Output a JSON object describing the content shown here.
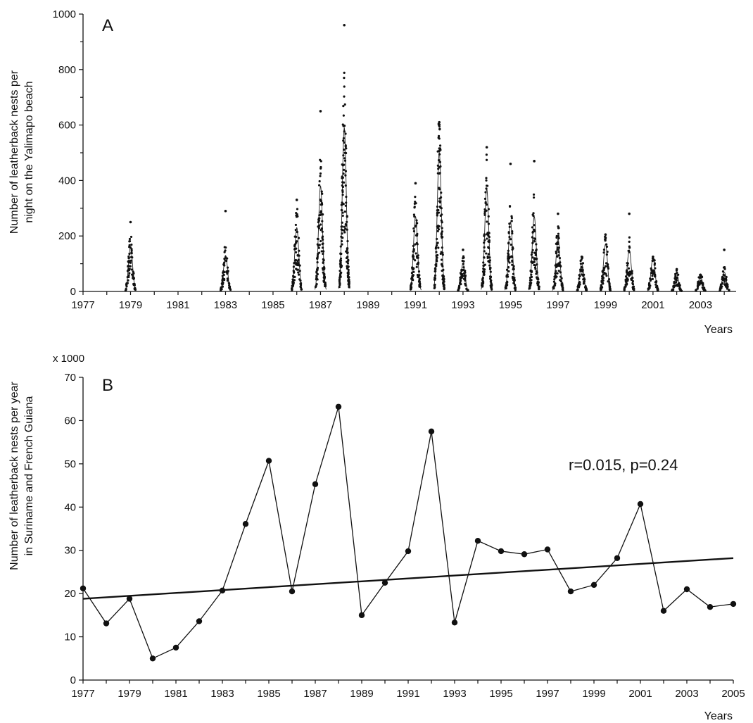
{
  "chart_data": [
    {
      "type": "scatter",
      "panel_label": "A",
      "ylabel_lines": [
        "Number of leatherback nests per",
        "night on the Yalimapo beach"
      ],
      "xlabel": "Years",
      "xlim": [
        1977,
        2004.5
      ],
      "ylim": [
        0,
        1000
      ],
      "y_ticks": [
        0,
        200,
        400,
        600,
        800,
        1000
      ],
      "y_minor_step": 100,
      "x_ticks": [
        1977,
        1979,
        1981,
        1983,
        1985,
        1987,
        1989,
        1991,
        1993,
        1995,
        1997,
        1999,
        2001,
        2003
      ],
      "x_tick_labels": [
        "1977",
        "1979",
        "1981",
        "1983",
        "1985",
        "1987",
        "1989",
        "1991",
        "1993",
        "1995",
        "1997",
        "1999",
        "2001",
        "2003"
      ],
      "seasons": [
        {
          "year": 1979,
          "peak": 160,
          "max_obs": 250
        },
        {
          "year": 1983,
          "peak": 130,
          "max_obs": 290
        },
        {
          "year": 1986,
          "peak": 230,
          "max_obs": 330
        },
        {
          "year": 1987,
          "peak": 380,
          "max_obs": 650
        },
        {
          "year": 1988,
          "peak": 590,
          "max_obs": 960
        },
        {
          "year": 1991,
          "peak": 270,
          "max_obs": 390
        },
        {
          "year": 1992,
          "peak": 500,
          "max_obs": 610
        },
        {
          "year": 1993,
          "peak": 100,
          "max_obs": 150
        },
        {
          "year": 1994,
          "peak": 370,
          "max_obs": 520
        },
        {
          "year": 1995,
          "peak": 250,
          "max_obs": 460
        },
        {
          "year": 1996,
          "peak": 270,
          "max_obs": 470
        },
        {
          "year": 1997,
          "peak": 190,
          "max_obs": 280
        },
        {
          "year": 1998,
          "peak": 100,
          "max_obs": 125
        },
        {
          "year": 1999,
          "peak": 170,
          "max_obs": 205
        },
        {
          "year": 2000,
          "peak": 150,
          "max_obs": 280
        },
        {
          "year": 2001,
          "peak": 120,
          "max_obs": 125
        },
        {
          "year": 2002,
          "peak": 60,
          "max_obs": 80
        },
        {
          "year": 2003,
          "peak": 55,
          "max_obs": 60
        },
        {
          "year": 2004,
          "peak": 70,
          "max_obs": 150
        }
      ],
      "grid": false,
      "legend": "none"
    },
    {
      "type": "line",
      "panel_label": "B",
      "multiplier_label": "x 1000",
      "ylabel_lines": [
        "Number of leatherback nests per year",
        "in Suriname and French Guiana"
      ],
      "xlabel": "Years",
      "x": [
        1977,
        1978,
        1979,
        1980,
        1981,
        1982,
        1983,
        1984,
        1985,
        1986,
        1987,
        1988,
        1989,
        1990,
        1991,
        1992,
        1993,
        1994,
        1995,
        1996,
        1997,
        1998,
        1999,
        2000,
        2001,
        2002,
        2003,
        2004,
        2005
      ],
      "series": [
        {
          "values": [
            21.2,
            13.1,
            18.8,
            5.0,
            7.5,
            13.6,
            20.7,
            36.1,
            50.7,
            20.5,
            45.3,
            63.2,
            15.0,
            22.5,
            29.8,
            57.5,
            13.3,
            32.2,
            29.8,
            29.1,
            30.2,
            20.5,
            22.0,
            28.2,
            40.7,
            16.0,
            21.0,
            16.9,
            17.6
          ]
        }
      ],
      "trend_line": {
        "x": [
          1977,
          2005
        ],
        "y": [
          18.8,
          28.2
        ]
      },
      "annotation": "r=0.015, p=0.24",
      "xlim": [
        1977,
        2005
      ],
      "ylim": [
        0,
        70
      ],
      "y_ticks": [
        0,
        10,
        20,
        30,
        40,
        50,
        60,
        70
      ],
      "x_ticks": [
        1977,
        1979,
        1981,
        1983,
        1985,
        1987,
        1989,
        1991,
        1993,
        1995,
        1997,
        1999,
        2001,
        2003,
        2005
      ],
      "x_tick_labels": [
        "1977",
        "1979",
        "1981",
        "1983",
        "1985",
        "1987",
        "1989",
        "1991",
        "1993",
        "1995",
        "1997",
        "1999",
        "2001",
        "2003",
        "2005"
      ],
      "grid": false,
      "legend": "none"
    }
  ]
}
